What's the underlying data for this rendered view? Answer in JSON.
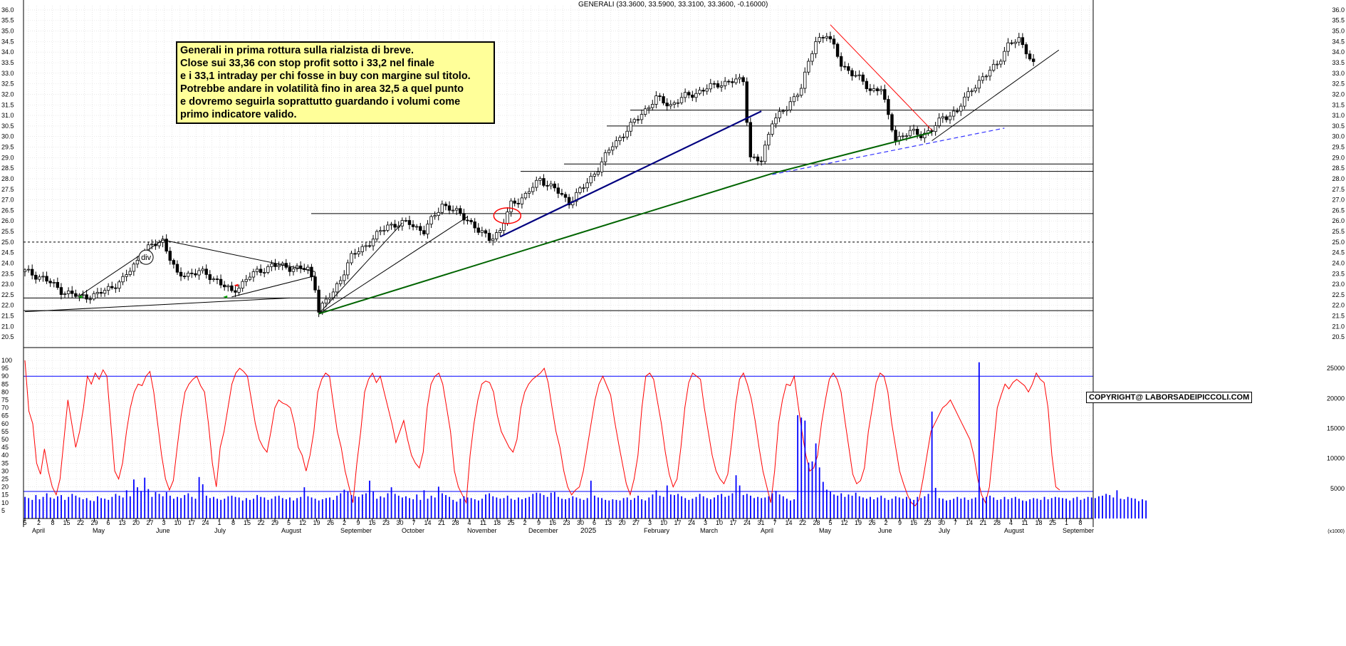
{
  "title": "GENERALI (33.3600, 33.5900, 33.3100, 33.3600, -0.16000)",
  "note_lines": [
    "Generali in prima rottura sulla rialzista di breve.",
    "Close sui 33,36 con stop profit sotto i 33,2 nel finale",
    "e i 33,1 intraday per chi fosse in buy con margine sul titolo.",
    "Potrebbe andare in volatilità fino in area 32,5 a quel punto",
    "e dovremo seguirla soprattutto guardando i volumi come",
    "primo indicatore valido."
  ],
  "copyright": "COPYRIGHT@ LABORSADEIPICCOLI.COM",
  "div_label": "div",
  "year_label": "2025",
  "volume_unit_label": "(x1000)",
  "colors": {
    "candle": "#000000",
    "oscillator": "#ff0000",
    "volume": "#0000ff",
    "trend_blue": "#00007f",
    "trend_green": "#006400",
    "trend_red": "#ff0000",
    "dashed_blue": "#3333ff",
    "note_bg": "#ffff99"
  },
  "chart_data": [
    {
      "type": "candlestick",
      "name": "price",
      "ylim": [
        20.0,
        36.2
      ],
      "yticks": [
        "20.5",
        "21.0",
        "21.5",
        "22.0",
        "22.5",
        "23.0",
        "23.5",
        "24.0",
        "24.5",
        "25.0",
        "25.5",
        "26.0",
        "26.5",
        "27.0",
        "27.5",
        "28.0",
        "28.5",
        "29.0",
        "29.5",
        "30.0",
        "30.5",
        "31.0",
        "31.5",
        "32.0",
        "32.5",
        "33.0",
        "33.5",
        "34.0",
        "34.5",
        "35.0",
        "35.5",
        "36.0"
      ],
      "path": [
        [
          0,
          23.6
        ],
        [
          5,
          23.3
        ],
        [
          10,
          22.7
        ],
        [
          15,
          22.4
        ],
        [
          20,
          22.5
        ],
        [
          27,
          23.2
        ],
        [
          33,
          24.6
        ],
        [
          38,
          25.1
        ],
        [
          42,
          23.4
        ],
        [
          48,
          23.6
        ],
        [
          53,
          23.2
        ],
        [
          57,
          22.6
        ],
        [
          62,
          23.4
        ],
        [
          68,
          23.9
        ],
        [
          73,
          23.8
        ],
        [
          78,
          23.7
        ],
        [
          80,
          22.9
        ],
        [
          81,
          21.8
        ],
        [
          85,
          22.6
        ],
        [
          90,
          24.3
        ],
        [
          95,
          25.0
        ],
        [
          100,
          25.8
        ],
        [
          106,
          25.9
        ],
        [
          110,
          25.5
        ],
        [
          115,
          26.8
        ],
        [
          118,
          26.5
        ],
        [
          122,
          26.1
        ],
        [
          125,
          25.5
        ],
        [
          128,
          25.2
        ],
        [
          131,
          25.5
        ],
        [
          134,
          26.8
        ],
        [
          138,
          27.2
        ],
        [
          142,
          28.0
        ],
        [
          146,
          27.5
        ],
        [
          150,
          26.9
        ],
        [
          154,
          27.6
        ],
        [
          158,
          28.5
        ],
        [
          162,
          29.6
        ],
        [
          166,
          30.3
        ],
        [
          170,
          31.1
        ],
        [
          174,
          31.8
        ],
        [
          178,
          31.5
        ],
        [
          182,
          31.9
        ],
        [
          187,
          32.2
        ],
        [
          191,
          32.5
        ],
        [
          195,
          32.6
        ],
        [
          198,
          32.7
        ],
        [
          200,
          29.0
        ],
        [
          203,
          28.8
        ],
        [
          206,
          30.8
        ],
        [
          210,
          31.3
        ],
        [
          214,
          32.4
        ],
        [
          218,
          34.5
        ],
        [
          221,
          34.9
        ],
        [
          223,
          34.2
        ],
        [
          225,
          33.4
        ],
        [
          229,
          32.9
        ],
        [
          233,
          32.2
        ],
        [
          236,
          32.3
        ],
        [
          238,
          30.9
        ],
        [
          240,
          29.9
        ],
        [
          244,
          30.2
        ],
        [
          247,
          30.1
        ],
        [
          250,
          30.3
        ],
        [
          253,
          30.9
        ],
        [
          257,
          31.2
        ],
        [
          261,
          32.3
        ],
        [
          265,
          32.9
        ],
        [
          268,
          33.5
        ],
        [
          271,
          34.3
        ],
        [
          274,
          34.6
        ],
        [
          276,
          34.1
        ],
        [
          278,
          33.4
        ]
      ],
      "horizontal_levels": [
        {
          "y": 21.75,
          "style": "solid"
        },
        {
          "y": 22.35,
          "style": "solid"
        },
        {
          "y": 25.0,
          "style": "dashed"
        },
        {
          "y": 26.35,
          "style": "solid"
        },
        {
          "y": 28.35,
          "style": "solid"
        },
        {
          "y": 28.7,
          "style": "solid"
        },
        {
          "y": 30.5,
          "style": "solid"
        },
        {
          "y": 31.25,
          "style": "solid"
        }
      ]
    },
    {
      "type": "line",
      "name": "oscillator",
      "ylim": [
        0,
        100
      ],
      "yticks": [
        "5",
        "10",
        "15",
        "20",
        "25",
        "30",
        "35",
        "40",
        "45",
        "50",
        "55",
        "60",
        "65",
        "70",
        "75",
        "80",
        "85",
        "90",
        "95",
        "100"
      ],
      "hline": 90,
      "values": [
        100,
        68,
        60,
        35,
        28,
        44,
        30,
        20,
        15,
        25,
        50,
        75,
        60,
        45,
        55,
        70,
        90,
        85,
        92,
        88,
        94,
        90,
        60,
        30,
        25,
        35,
        55,
        70,
        80,
        85,
        84,
        90,
        93,
        80,
        60,
        40,
        25,
        18,
        24,
        45,
        65,
        80,
        85,
        88,
        90,
        84,
        80,
        60,
        35,
        20,
        45,
        55,
        70,
        85,
        92,
        95,
        93,
        90,
        75,
        60,
        50,
        45,
        42,
        55,
        70,
        75,
        73,
        72,
        70,
        60,
        45,
        40,
        30,
        40,
        55,
        80,
        88,
        92,
        90,
        72,
        55,
        45,
        30,
        20,
        10,
        35,
        55,
        80,
        88,
        92,
        86,
        90,
        80,
        70,
        60,
        48,
        55,
        62,
        50,
        40,
        35,
        32,
        42,
        70,
        85,
        90,
        92,
        85,
        70,
        55,
        30,
        20,
        15,
        10,
        40,
        60,
        75,
        85,
        87,
        86,
        80,
        65,
        55,
        50,
        45,
        42,
        50,
        70,
        80,
        85,
        88,
        90,
        92,
        95,
        86,
        70,
        55,
        45,
        30,
        20,
        15,
        18,
        20,
        30,
        45,
        60,
        75,
        85,
        90,
        84,
        78,
        62,
        48,
        35,
        22,
        15,
        25,
        40,
        70,
        90,
        92,
        88,
        74,
        60,
        42,
        28,
        20,
        25,
        45,
        70,
        86,
        92,
        90,
        88,
        70,
        55,
        40,
        30,
        25,
        22,
        28,
        48,
        72,
        88,
        92,
        85,
        76,
        62,
        45,
        30,
        20,
        10,
        30,
        60,
        75,
        85,
        84,
        90,
        72,
        55,
        40,
        30,
        32,
        40,
        60,
        75,
        88,
        92,
        88,
        80,
        62,
        45,
        28,
        22,
        24,
        32,
        55,
        70,
        86,
        92,
        90,
        80,
        60,
        45,
        30,
        22,
        15,
        10,
        8,
        12,
        25,
        40,
        55,
        60,
        65,
        70,
        72,
        75,
        70,
        65,
        60,
        55,
        50,
        40,
        25,
        15,
        10,
        20,
        45,
        70,
        78,
        85,
        82,
        86,
        88,
        86,
        84,
        80,
        85,
        92,
        88,
        86,
        70,
        40,
        20,
        18
      ]
    },
    {
      "type": "bar",
      "name": "volume",
      "ylim": [
        0,
        27500
      ],
      "yticks": [
        "5000",
        "10000",
        "15000",
        "20000",
        "25000"
      ],
      "hline": 24500,
      "hline_low": 4500,
      "values": [
        3600,
        3400,
        3100,
        3900,
        3200,
        3600,
        4200,
        3500,
        3300,
        3700,
        3900,
        3100,
        3600,
        4100,
        3800,
        3500,
        3200,
        3400,
        3000,
        2900,
        3700,
        3400,
        3300,
        3100,
        3600,
        4100,
        3800,
        3500,
        4700,
        3700,
        6500,
        5200,
        4600,
        6800,
        4900,
        3600,
        4400,
        4100,
        3700,
        4400,
        3800,
        3300,
        3600,
        3400,
        3900,
        4200,
        3600,
        3300,
        6900,
        5700,
        3800,
        3400,
        3600,
        3300,
        3100,
        3300,
        3700,
        3800,
        3600,
        3500,
        3000,
        3400,
        3100,
        3300,
        3900,
        3600,
        3500,
        3100,
        3300,
        3700,
        3800,
        3400,
        3200,
        3500,
        3000,
        3400,
        3600,
        5200,
        3700,
        3500,
        3300,
        3000,
        3200,
        3400,
        3500,
        3100,
        3800,
        4200,
        4800,
        4500,
        3900,
        3700,
        3600,
        4000,
        4200,
        6300,
        4500,
        3300,
        3700,
        3500,
        4200,
        5200,
        4100,
        3800,
        3500,
        3700,
        3400,
        3200,
        4000,
        3100,
        4700,
        3300,
        3800,
        3500,
        5300,
        4200,
        3900,
        3600,
        3100,
        2800,
        3300,
        3700,
        3500,
        3400,
        3200,
        3000,
        3300,
        4000,
        4200,
        3700,
        3500,
        3300,
        3400,
        3800,
        3300,
        3100,
        3500,
        3200,
        3400,
        3600,
        4100,
        4300,
        4200,
        3900,
        3600,
        4300,
        4400,
        3600,
        3300,
        3200,
        3400,
        3700,
        3500,
        3300,
        3100,
        3400,
        6300,
        3800,
        3500,
        3400,
        3100,
        3000,
        3200,
        3100,
        3000,
        3400,
        3500,
        3100,
        3400,
        3800,
        3200,
        3000,
        3500,
        4000,
        4700,
        3800,
        3600,
        5500,
        4000,
        3900,
        4100,
        3700,
        3400,
        3100,
        3300,
        3600,
        4100,
        3700,
        3400,
        3200,
        3500,
        3900,
        4100,
        3600,
        3800,
        4200,
        7200,
        5500,
        3900,
        4100,
        3800,
        3400,
        3600,
        3400,
        3500,
        3700,
        4200,
        4600,
        4000,
        3700,
        3300,
        3000,
        3200,
        17200,
        16800,
        16300,
        9300,
        9500,
        12500,
        8500,
        6100,
        4800,
        4500,
        4000,
        3800,
        4200,
        3600,
        4000,
        3800,
        4300,
        3700,
        3500,
        3300,
        3600,
        3200,
        3500,
        3800,
        3400,
        3100,
        3300,
        3700,
        3500,
        3300,
        3600,
        3300,
        3100,
        3600,
        3400,
        3700,
        4100,
        17800,
        5100,
        3400,
        3300,
        3000,
        3100,
        3300,
        3600,
        3300,
        3500,
        3100,
        3300,
        3500,
        26000,
        3400,
        3600,
        3800,
        3500,
        3100,
        3200,
        3600,
        3200,
        3400,
        3600,
        3300,
        3000,
        2900,
        3200,
        3400,
        3300,
        3100,
        3600,
        3200,
        3400,
        3600,
        3500,
        3400,
        3300,
        3000,
        3400,
        3600,
        3100,
        3300,
        3600,
        3500,
        3400,
        3700,
        3800,
        4100,
        3900,
        3500,
        4700,
        3300,
        3200,
        3600,
        3400,
        3300,
        2900,
        3200,
        3000
      ]
    },
    {
      "type": "axis",
      "name": "time-axis",
      "day_labels": [
        "5",
        "2",
        "8",
        "15",
        "22",
        "29",
        "6",
        "13",
        "20",
        "27",
        "3",
        "10",
        "17",
        "24",
        "1",
        "8",
        "15",
        "22",
        "29",
        "5",
        "12",
        "19",
        "26",
        "2",
        "9",
        "16",
        "23",
        "30",
        "7",
        "14",
        "21",
        "28",
        "4",
        "11",
        "18",
        "25",
        "2",
        "9",
        "16",
        "23",
        "30",
        "6",
        "13",
        "20",
        "27",
        "3",
        "10",
        "17",
        "24",
        "3",
        "10",
        "17",
        "24",
        "31",
        "7",
        "14",
        "22",
        "28",
        "5",
        "12",
        "19",
        "26",
        "2",
        "9",
        "16",
        "23",
        "30",
        "7",
        "14",
        "21",
        "28",
        "4",
        "11",
        "18",
        "25",
        "1",
        "8"
      ],
      "month_labels": [
        "April",
        "May",
        "June",
        "July",
        "August",
        "September",
        "October",
        "November",
        "December",
        "February",
        "March",
        "April",
        "May",
        "June",
        "July",
        "August",
        "September"
      ]
    }
  ]
}
